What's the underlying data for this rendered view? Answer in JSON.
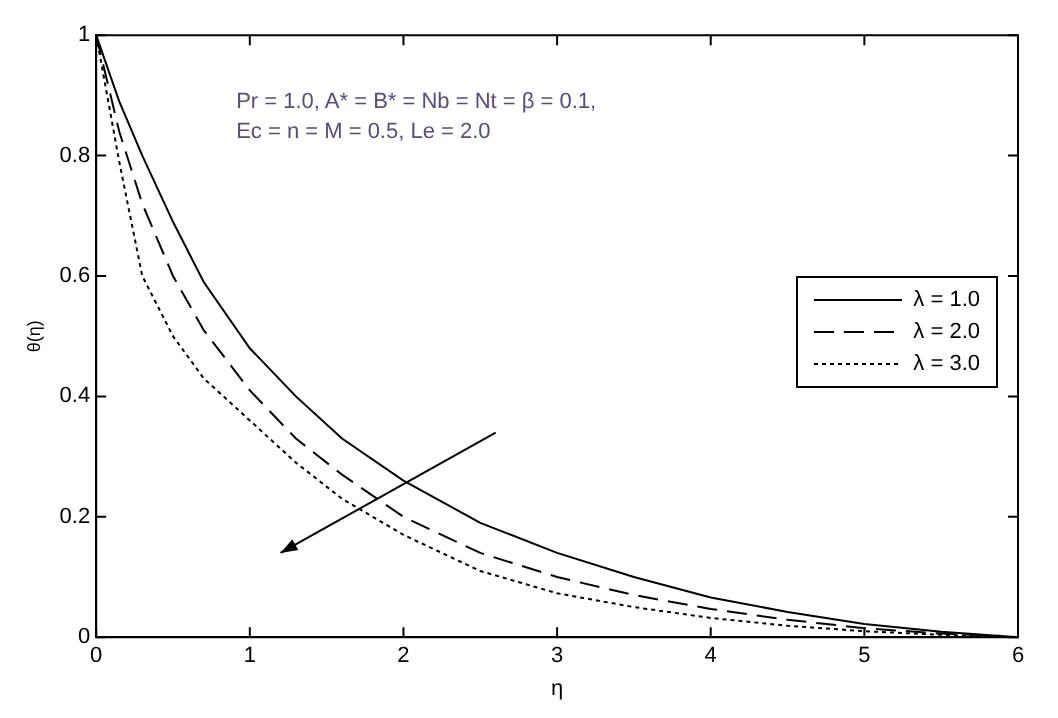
{
  "chart_data": {
    "type": "line",
    "xlabel": "η",
    "ylabel": "θ(η)",
    "x": [
      0,
      0.15,
      0.3,
      0.5,
      0.7,
      1,
      1.3,
      1.6,
      2,
      2.5,
      3,
      3.5,
      4,
      4.5,
      5,
      5.5,
      6
    ],
    "series": [
      {
        "name": "λ = 1.0",
        "color": "#000000",
        "line_style": "solid",
        "values": [
          1,
          0.89,
          0.8,
          0.69,
          0.59,
          0.48,
          0.4,
          0.33,
          0.26,
          0.19,
          0.14,
          0.1,
          0.066,
          0.042,
          0.022,
          0.009,
          0
        ]
      },
      {
        "name": "λ = 2.0",
        "color": "#000000",
        "line_style": "dashed",
        "x": [
          0,
          0.15,
          0.3,
          0.5,
          0.7,
          1,
          1.3,
          1.6,
          2,
          2.5,
          3,
          3.5,
          4,
          4.5,
          5,
          5.5,
          5.9
        ],
        "values": [
          1,
          0.84,
          0.72,
          0.6,
          0.51,
          0.41,
          0.33,
          0.27,
          0.2,
          0.14,
          0.1,
          0.07,
          0.047,
          0.029,
          0.015,
          0.006,
          0.002
        ]
      },
      {
        "name": "λ = 3.0",
        "color": "#000000",
        "line_style": "dotted",
        "x": [
          0,
          0.15,
          0.3,
          0.5,
          0.7,
          1,
          1.3,
          1.6,
          2,
          2.5,
          3,
          3.5,
          4,
          4.5,
          5,
          5.5,
          5.8
        ],
        "values": [
          1,
          0.79,
          0.6,
          0.5,
          0.43,
          0.36,
          0.29,
          0.23,
          0.17,
          0.11,
          0.073,
          0.05,
          0.032,
          0.019,
          0.01,
          0.004,
          0.002
        ]
      }
    ],
    "xlim": [
      0,
      6
    ],
    "xticks": [
      0,
      1,
      2,
      3,
      4,
      5,
      6
    ],
    "ylim": [
      0,
      1
    ],
    "yticks": [
      0,
      0.2,
      0.4,
      0.6,
      0.8,
      1
    ],
    "grid": false,
    "legend": "right",
    "marker": "none",
    "annotations": [
      "Pr = 1.0, A* = B* = Nb = Nt = β = 0.1,",
      "Ec = n = M = 0.5, Le = 2.0"
    ]
  }
}
